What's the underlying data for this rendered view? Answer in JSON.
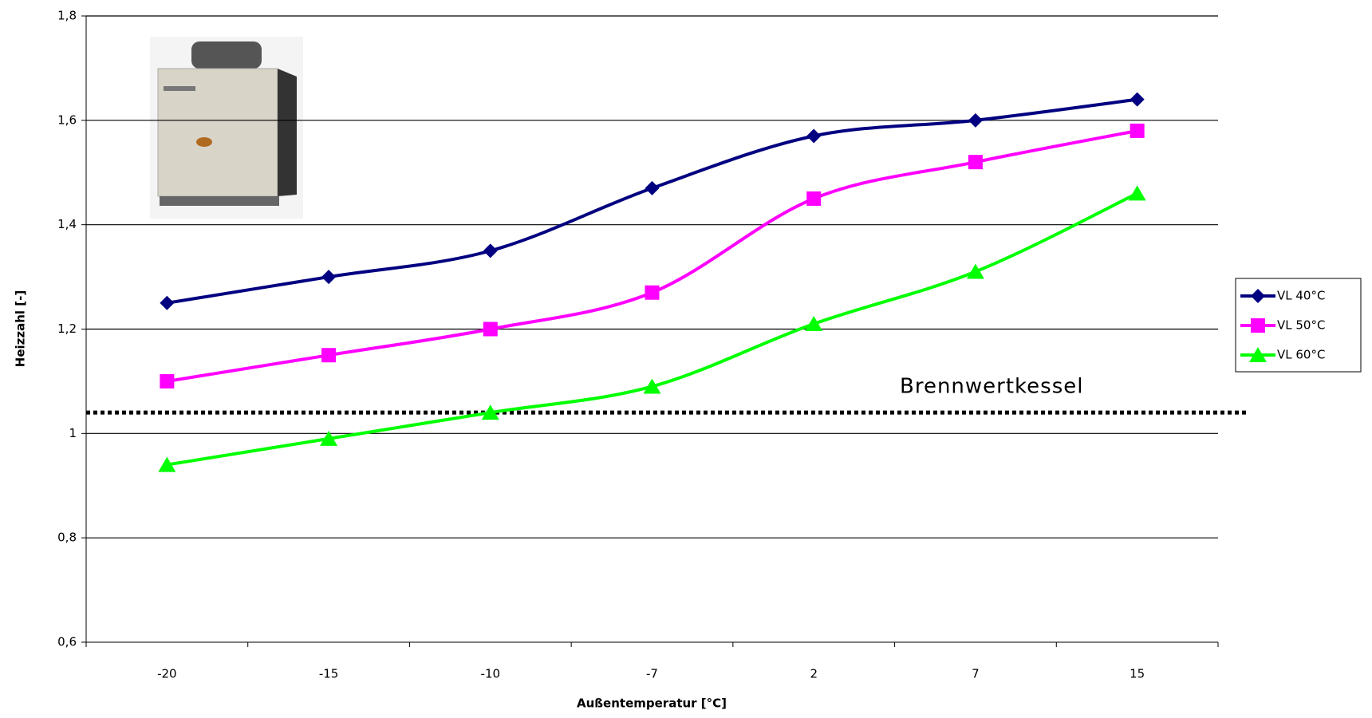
{
  "chart_data": {
    "type": "line",
    "x_label": "Außentemperatur [°C]",
    "y_label": "Heizzahl [-]",
    "categories": [
      "-20",
      "-15",
      "-10",
      "-7",
      "2",
      "7",
      "15"
    ],
    "series": [
      {
        "name": "VL 40°C",
        "color": "#000080",
        "marker": "diamond",
        "values": [
          1.25,
          1.3,
          1.35,
          1.47,
          1.57,
          1.6,
          1.64
        ]
      },
      {
        "name": "VL 50°C",
        "color": "#ff00ff",
        "marker": "square",
        "values": [
          1.1,
          1.15,
          1.2,
          1.27,
          1.45,
          1.52,
          1.58
        ]
      },
      {
        "name": "VL 60°C",
        "color": "#00ff00",
        "marker": "triangle",
        "values": [
          0.94,
          0.99,
          1.04,
          1.09,
          1.21,
          1.31,
          1.46
        ]
      }
    ],
    "ylim": [
      0.6,
      1.8
    ],
    "yticks": [
      {
        "value": 0.6,
        "label": "0,6"
      },
      {
        "value": 0.8,
        "label": "0,8"
      },
      1,
      {
        "value": 1.2,
        "label": "1,2"
      },
      {
        "value": 1.4,
        "label": "1,4"
      },
      {
        "value": 1.6,
        "label": "1,6"
      },
      {
        "value": 1.8,
        "label": "1,8"
      }
    ],
    "grid": true,
    "legend": "right",
    "reference_line": {
      "value": 1.04,
      "label": "Brennwertkessel"
    }
  }
}
